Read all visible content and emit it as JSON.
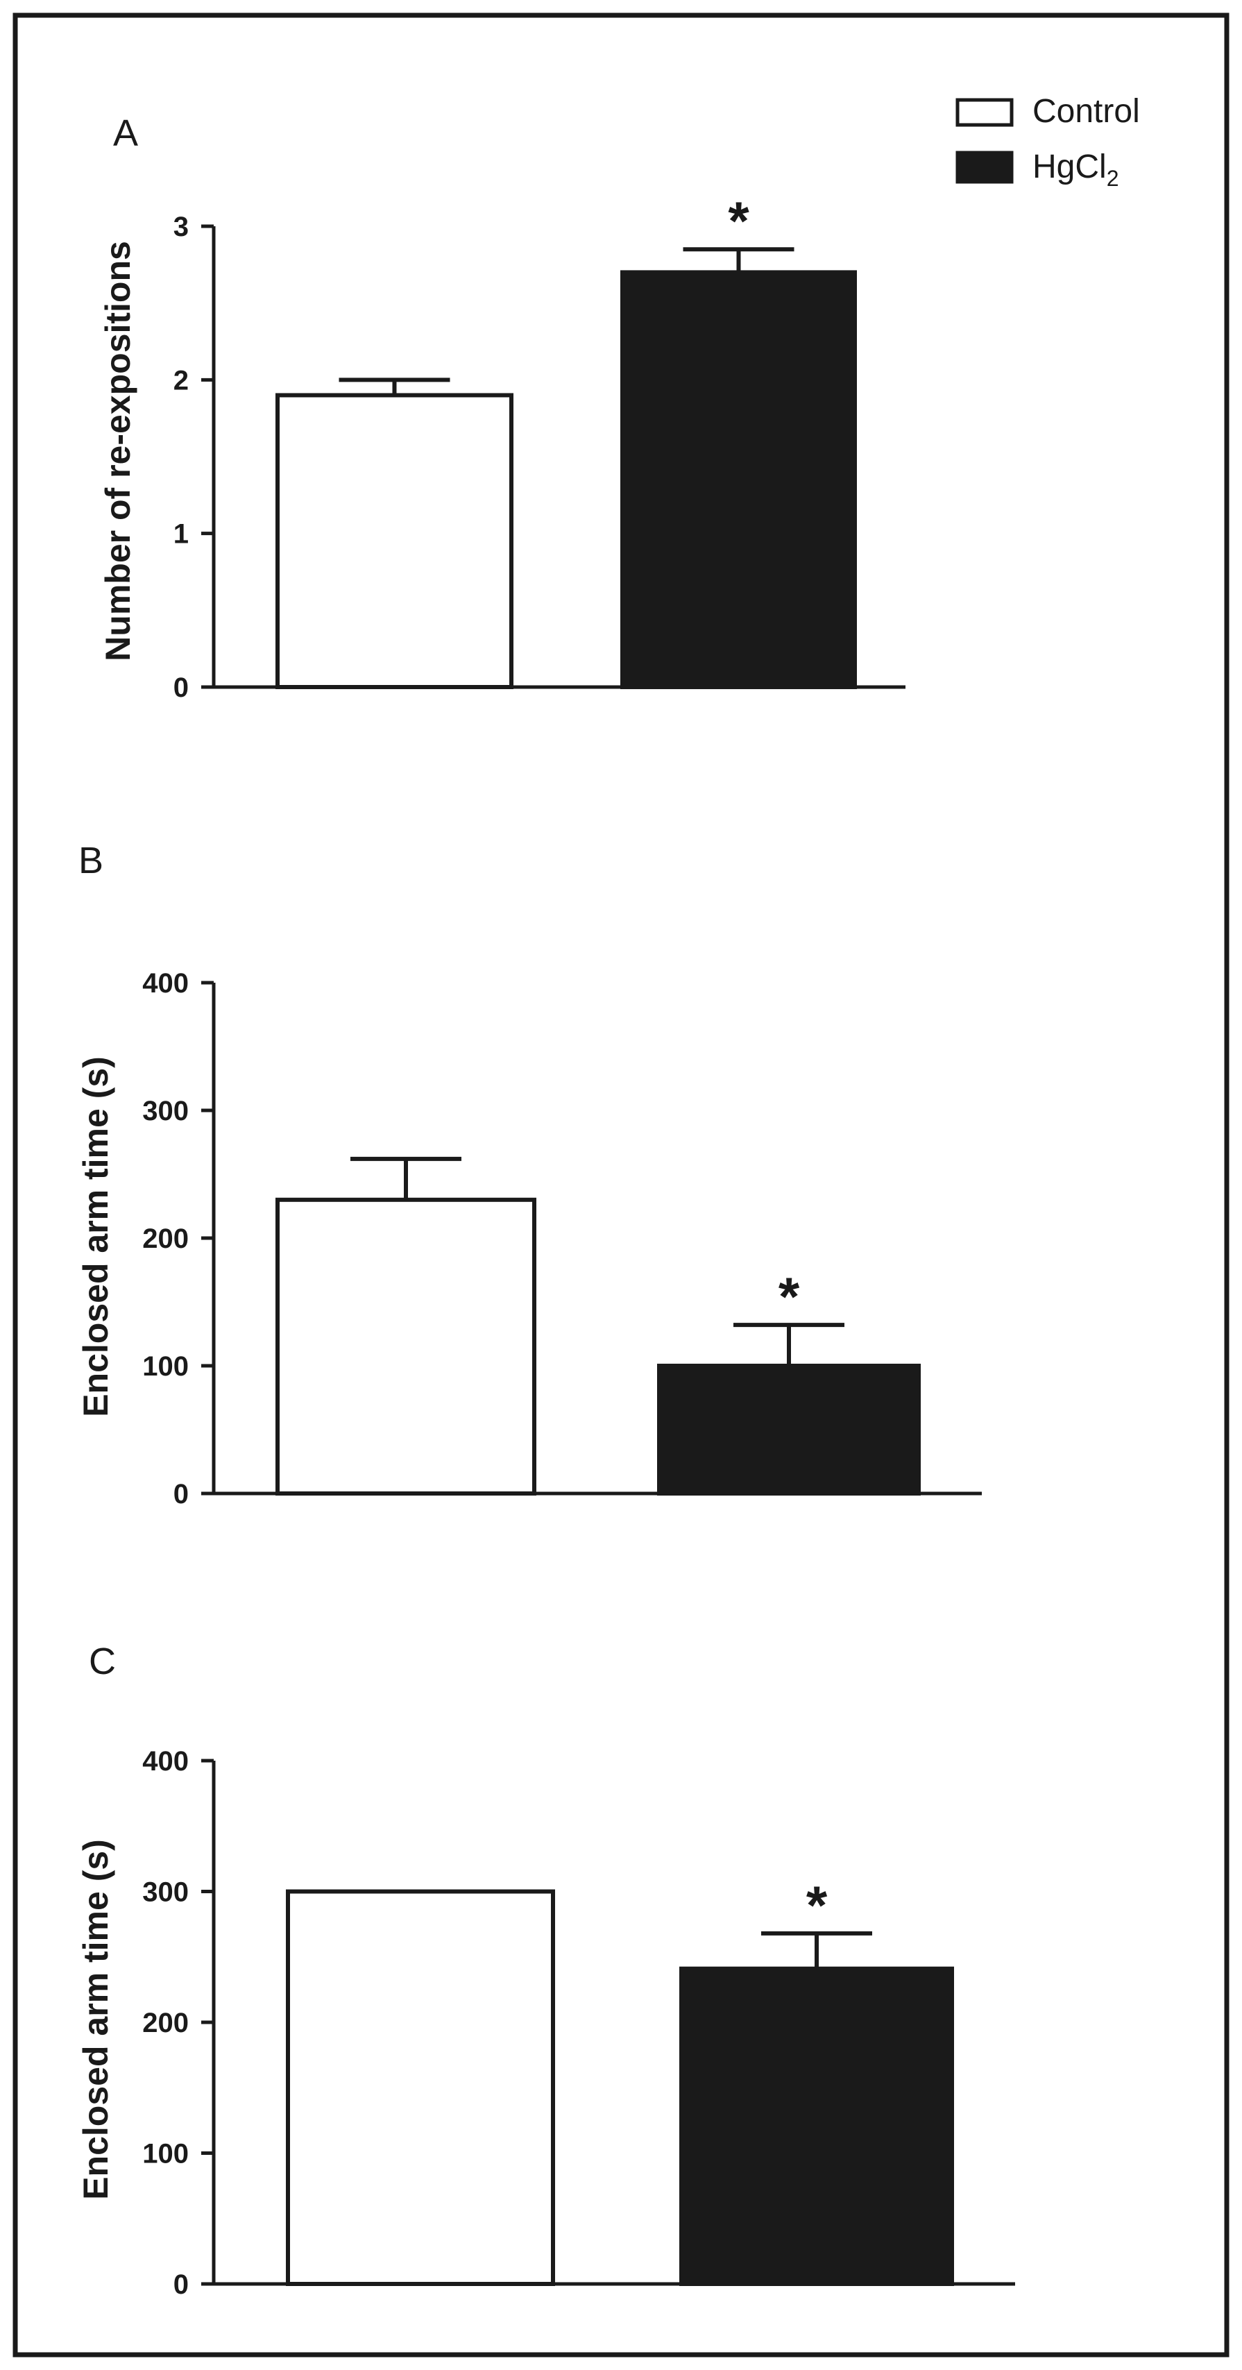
{
  "legend": {
    "control_label": "Control",
    "hg_label": "HgCl",
    "hg_subscript": "2"
  },
  "colors": {
    "control": "#ffffff",
    "hgcl2": "#1a1a1a",
    "axis": "#1a1a1a"
  },
  "chart_data": [
    {
      "panel": "A",
      "type": "bar",
      "categories": [
        "Control",
        "HgCl2"
      ],
      "values": [
        1.9,
        2.7
      ],
      "errors": [
        0.1,
        0.15
      ],
      "significance": [
        "",
        "*"
      ],
      "ylabel": "Number of re-expositions",
      "xlabel": "",
      "ylim": [
        0,
        3
      ],
      "yticks": [
        0,
        1,
        2,
        3
      ]
    },
    {
      "panel": "B",
      "type": "bar",
      "categories": [
        "Control",
        "HgCl2"
      ],
      "values": [
        230,
        100
      ],
      "errors": [
        32,
        32
      ],
      "significance": [
        "",
        "*"
      ],
      "ylabel": "Enclosed arm time (s)",
      "xlabel": "",
      "ylim": [
        0,
        400
      ],
      "yticks": [
        0,
        100,
        200,
        300,
        400
      ]
    },
    {
      "panel": "C",
      "type": "bar",
      "categories": [
        "Control",
        "HgCl2"
      ],
      "values": [
        300,
        241
      ],
      "errors": [
        0,
        27
      ],
      "significance": [
        "",
        "*"
      ],
      "ylabel": "Enclosed arm time (s)",
      "xlabel": "",
      "ylim": [
        0,
        400
      ],
      "yticks": [
        0,
        100,
        200,
        300,
        400
      ]
    }
  ]
}
